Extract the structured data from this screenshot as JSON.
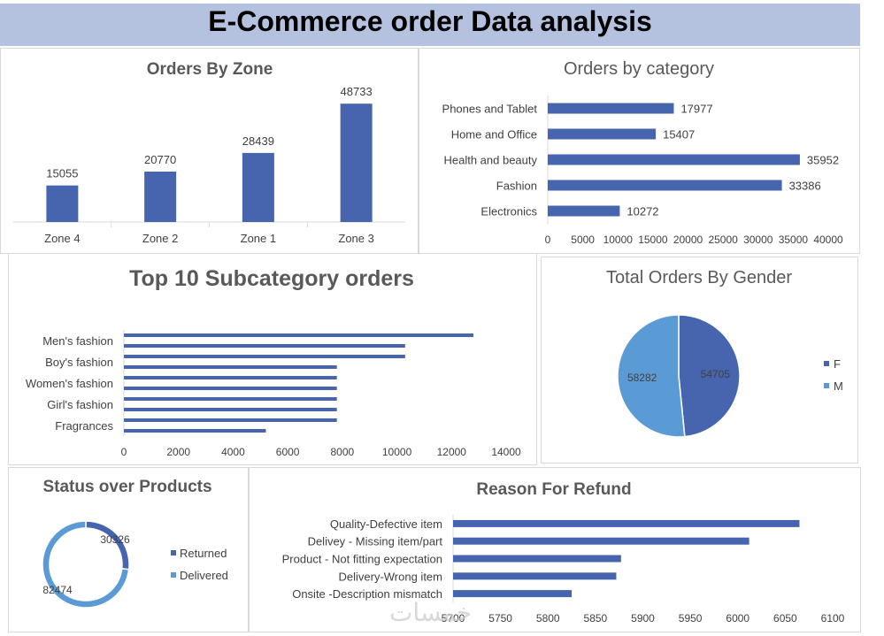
{
  "header": {
    "title": "E-Commerce order Data analysis"
  },
  "colors": {
    "primary": "#4764ae",
    "secondary": "#5b9bd5",
    "banner": "#b4c2e0"
  },
  "watermark": "خمسات",
  "chart_data": [
    {
      "id": "zone",
      "type": "bar",
      "title": "Orders By Zone",
      "categories": [
        "Zone 4",
        "Zone 2",
        "Zone 1",
        "Zone 3"
      ],
      "values": [
        15055,
        20770,
        28439,
        48733
      ],
      "ylim": [
        0,
        55000
      ]
    },
    {
      "id": "category",
      "type": "bar",
      "orientation": "horizontal",
      "title": "Orders  by  category",
      "categories": [
        "Phones and Tablet",
        "Home and Office",
        "Health and beauty",
        "Fashion",
        "Electronics"
      ],
      "values": [
        17977,
        15407,
        35952,
        33386,
        10272
      ],
      "xlim": [
        0,
        40000
      ],
      "xticks": [
        "0",
        "5000",
        "10000",
        "15000",
        "20000",
        "25000",
        "30000",
        "35000",
        "40000"
      ]
    },
    {
      "id": "subcategory",
      "type": "bar",
      "orientation": "horizontal",
      "title": "Top 10 Subcategory orders",
      "categories": [
        "Men's fashion",
        "",
        "Boy's fashion",
        "",
        "Women's fashion",
        "",
        "Girl's fashion",
        "",
        "Fragrances",
        ""
      ],
      "values": [
        12800,
        10300,
        10300,
        7800,
        7800,
        7800,
        7800,
        7800,
        7800,
        5200
      ],
      "xlim": [
        0,
        14000
      ],
      "xticks": [
        "0",
        "2000",
        "4000",
        "6000",
        "8000",
        "10000",
        "12000",
        "14000"
      ]
    },
    {
      "id": "gender",
      "type": "pie",
      "title": "Total Orders By Gender",
      "labels": [
        "F",
        "M"
      ],
      "values": [
        54705,
        58282
      ]
    },
    {
      "id": "status",
      "type": "pie",
      "subtype": "donut",
      "title": "Status over Products",
      "labels": [
        "Returned",
        "Delivered"
      ],
      "values": [
        30326,
        82474
      ]
    },
    {
      "id": "refund",
      "type": "bar",
      "orientation": "horizontal",
      "title": "Reason For Refund",
      "categories": [
        "Quality-Defective item",
        "Delivey - Missing item/part",
        "Product - Not fitting expectation",
        "Delivery-Wrong item",
        "Onsite -Description mismatch"
      ],
      "values": [
        6065,
        6012,
        5877,
        5872,
        5825
      ],
      "xlim": [
        5700,
        6100
      ],
      "xticks": [
        "5700",
        "5750",
        "5800",
        "5850",
        "5900",
        "5950",
        "6000",
        "6050",
        "6100"
      ]
    }
  ]
}
